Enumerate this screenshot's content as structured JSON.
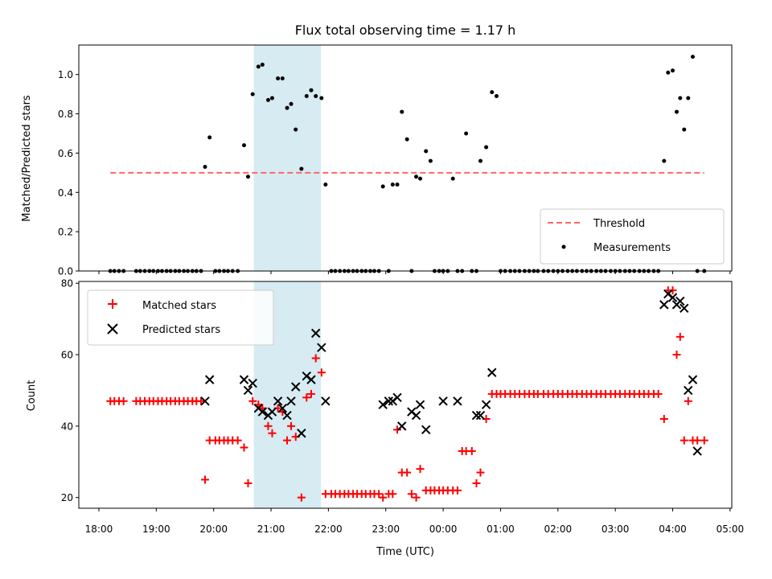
{
  "chart_data": [
    {
      "type": "scatter",
      "title": "Flux total observing time = 1.17 h",
      "xlabel": "",
      "ylabel": "Matched/Predicted stars",
      "ylim": [
        0,
        1.15
      ],
      "yticks": [
        "0.0",
        "0.2",
        "0.4",
        "0.6",
        "0.8",
        "1.0"
      ],
      "highlight_band": {
        "from": 20.7,
        "to": 21.87,
        "color": "#add8e6"
      },
      "threshold": {
        "name": "Threshold",
        "value": 0.5,
        "x_from": 18.2,
        "x_to": 28.55,
        "color": "#ff6666"
      },
      "legend_position": "lower right",
      "series": [
        {
          "name": "Measurements",
          "marker": "dot",
          "color": "#000000",
          "x": [
            18.2,
            18.27,
            18.35,
            18.43,
            18.65,
            18.72,
            18.8,
            18.88,
            18.95,
            19.03,
            19.1,
            19.18,
            19.25,
            19.33,
            19.4,
            19.48,
            19.55,
            19.63,
            19.7,
            19.78,
            19.85,
            19.93,
            20.03,
            20.1,
            20.18,
            20.25,
            20.33,
            20.42,
            20.53,
            20.6,
            20.68,
            20.78,
            20.85,
            20.95,
            21.02,
            21.12,
            21.2,
            21.28,
            21.35,
            21.43,
            21.53,
            21.62,
            21.7,
            21.78,
            21.88,
            21.95,
            22.05,
            22.12,
            22.2,
            22.28,
            22.35,
            22.43,
            22.5,
            22.58,
            22.65,
            22.73,
            22.8,
            22.88,
            22.95,
            23.05,
            23.12,
            23.2,
            23.28,
            23.37,
            23.45,
            23.53,
            23.6,
            23.7,
            23.78,
            23.85,
            23.93,
            24.0,
            24.08,
            24.17,
            24.25,
            24.33,
            24.4,
            24.5,
            24.58,
            24.65,
            24.75,
            24.85,
            24.93,
            25.0,
            25.08,
            25.17,
            25.25,
            25.33,
            25.42,
            25.5,
            25.58,
            25.65,
            25.75,
            25.83,
            25.92,
            26.0,
            26.08,
            26.17,
            26.25,
            26.33,
            26.42,
            26.5,
            26.58,
            26.67,
            26.75,
            26.83,
            26.92,
            27.0,
            27.08,
            27.17,
            27.25,
            27.33,
            27.42,
            27.5,
            27.58,
            27.67,
            27.75,
            27.85,
            27.92,
            28.0,
            28.07,
            28.13,
            28.2,
            28.27,
            28.35,
            28.43,
            28.55
          ],
          "y": [
            0.0,
            0.0,
            0.0,
            0.0,
            0.0,
            0.0,
            0.0,
            0.0,
            0.0,
            0.0,
            0.0,
            0.0,
            0.0,
            0.0,
            0.0,
            0.0,
            0.0,
            0.0,
            0.0,
            0.0,
            0.53,
            0.68,
            0.0,
            0.0,
            0.0,
            0.0,
            0.0,
            0.0,
            0.64,
            0.48,
            0.9,
            1.04,
            1.05,
            0.87,
            0.88,
            0.98,
            0.98,
            0.83,
            0.85,
            0.72,
            0.52,
            0.89,
            0.92,
            0.89,
            0.88,
            0.44,
            0.0,
            0.0,
            0.0,
            0.0,
            0.0,
            0.0,
            0.0,
            0.0,
            0.0,
            0.0,
            0.0,
            0.0,
            0.43,
            0.0,
            0.44,
            0.44,
            0.81,
            0.67,
            0.0,
            0.48,
            0.47,
            0.61,
            0.56,
            0.0,
            0.0,
            0.0,
            0.0,
            0.47,
            0.0,
            0.0,
            0.7,
            0.0,
            0.0,
            0.56,
            0.63,
            0.91,
            0.89,
            0.0,
            0.0,
            0.0,
            0.0,
            0.0,
            0.0,
            0.0,
            0.0,
            0.0,
            0.0,
            0.0,
            0.0,
            0.0,
            0.0,
            0.0,
            0.0,
            0.0,
            0.0,
            0.0,
            0.0,
            0.0,
            0.0,
            0.0,
            0.0,
            0.0,
            0.0,
            0.0,
            0.0,
            0.0,
            0.0,
            0.0,
            0.0,
            0.0,
            0.0,
            0.56,
            1.01,
            1.02,
            0.81,
            0.88,
            0.72,
            0.88,
            1.09,
            0.0,
            0.0
          ]
        }
      ]
    },
    {
      "type": "scatter",
      "title": "",
      "xlabel": "Time (UTC)",
      "ylabel": "Count",
      "ylim": [
        17,
        80.5
      ],
      "yticks": [
        "20",
        "40",
        "60",
        "80"
      ],
      "xlim": [
        17.65,
        29.03
      ],
      "xticks": [
        "18:00",
        "19:00",
        "20:00",
        "21:00",
        "22:00",
        "23:00",
        "00:00",
        "01:00",
        "02:00",
        "03:00",
        "04:00",
        "05:00"
      ],
      "highlight_band": {
        "from": 20.7,
        "to": 21.87,
        "color": "#add8e6"
      },
      "legend_position": "upper left",
      "series": [
        {
          "name": "Matched stars",
          "marker": "plus",
          "color": "#ff0000",
          "x": [
            18.2,
            18.27,
            18.35,
            18.43,
            18.65,
            18.72,
            18.8,
            18.88,
            18.95,
            19.03,
            19.1,
            19.18,
            19.25,
            19.33,
            19.4,
            19.48,
            19.55,
            19.63,
            19.7,
            19.78,
            19.85,
            19.93,
            20.03,
            20.1,
            20.18,
            20.25,
            20.33,
            20.42,
            20.53,
            20.6,
            20.68,
            20.78,
            20.85,
            20.95,
            21.02,
            21.12,
            21.2,
            21.28,
            21.35,
            21.43,
            21.53,
            21.62,
            21.7,
            21.78,
            21.88,
            21.95,
            22.05,
            22.12,
            22.2,
            22.28,
            22.35,
            22.43,
            22.5,
            22.58,
            22.65,
            22.73,
            22.8,
            22.88,
            22.95,
            23.05,
            23.12,
            23.2,
            23.28,
            23.37,
            23.45,
            23.53,
            23.6,
            23.7,
            23.78,
            23.85,
            23.93,
            24.0,
            24.08,
            24.17,
            24.25,
            24.33,
            24.4,
            24.5,
            24.58,
            24.65,
            24.75,
            24.85,
            24.93,
            25.0,
            25.08,
            25.17,
            25.25,
            25.33,
            25.42,
            25.5,
            25.58,
            25.65,
            25.75,
            25.83,
            25.92,
            26.0,
            26.08,
            26.17,
            26.25,
            26.33,
            26.42,
            26.5,
            26.58,
            26.67,
            26.75,
            26.83,
            26.92,
            27.0,
            27.08,
            27.17,
            27.25,
            27.33,
            27.42,
            27.5,
            27.58,
            27.67,
            27.75,
            27.85,
            27.92,
            28.0,
            28.07,
            28.13,
            28.2,
            28.27,
            28.35,
            28.43,
            28.55
          ],
          "y": [
            47,
            47,
            47,
            47,
            47,
            47,
            47,
            47,
            47,
            47,
            47,
            47,
            47,
            47,
            47,
            47,
            47,
            47,
            47,
            47,
            25,
            36,
            36,
            36,
            36,
            36,
            36,
            36,
            34,
            24,
            47,
            46,
            45,
            40,
            38,
            45,
            44,
            36,
            40,
            37,
            20,
            48,
            49,
            59,
            55,
            21,
            21,
            21,
            21,
            21,
            21,
            21,
            21,
            21,
            21,
            21,
            21,
            21,
            20,
            21,
            21,
            39,
            27,
            27,
            21,
            20,
            28,
            22,
            22,
            22,
            22,
            22,
            22,
            22,
            22,
            33,
            33,
            33,
            24,
            27,
            42,
            49,
            49,
            49,
            49,
            49,
            49,
            49,
            49,
            49,
            49,
            49,
            49,
            49,
            49,
            49,
            49,
            49,
            49,
            49,
            49,
            49,
            49,
            49,
            49,
            49,
            49,
            49,
            49,
            49,
            49,
            49,
            49,
            49,
            49,
            49,
            49,
            42,
            78,
            78,
            60,
            65,
            36,
            47,
            36,
            36,
            36
          ]
        },
        {
          "name": "Predicted stars",
          "marker": "x",
          "color": "#000000",
          "x": [
            19.85,
            19.93,
            20.53,
            20.6,
            20.68,
            20.78,
            20.85,
            20.95,
            21.02,
            21.12,
            21.2,
            21.28,
            21.35,
            21.43,
            21.53,
            21.62,
            21.7,
            21.78,
            21.88,
            21.95,
            22.95,
            23.05,
            23.12,
            23.2,
            23.28,
            23.45,
            23.53,
            23.6,
            23.7,
            24.0,
            24.25,
            24.58,
            24.65,
            24.75,
            24.85,
            27.85,
            27.92,
            28.0,
            28.07,
            28.13,
            28.2,
            28.27,
            28.35,
            28.43
          ],
          "y": [
            47,
            53,
            53,
            50,
            52,
            45,
            44,
            43,
            44,
            47,
            45,
            43,
            47,
            51,
            38,
            54,
            53,
            66,
            62,
            47,
            46,
            47,
            47,
            48,
            40,
            44,
            43,
            46,
            39,
            47,
            47,
            43,
            43,
            46,
            55,
            74,
            77,
            76,
            74,
            75,
            73,
            50,
            53,
            33
          ]
        }
      ]
    }
  ]
}
